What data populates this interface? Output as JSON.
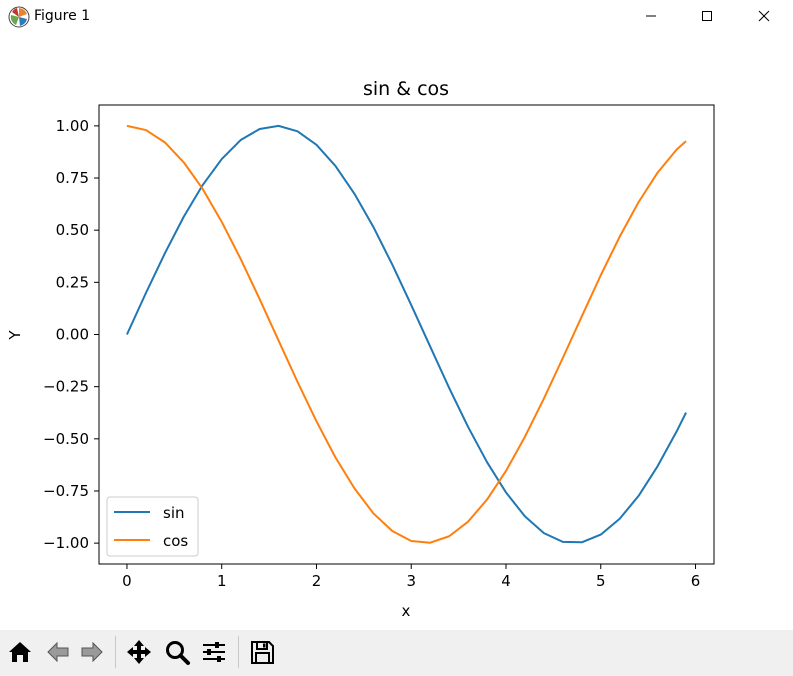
{
  "window": {
    "title": "Figure 1",
    "icons": [
      "matplotlib-logo-icon",
      "minimize-icon",
      "maximize-icon",
      "close-icon"
    ]
  },
  "toolbar": {
    "buttons": [
      {
        "name": "home",
        "icon": "home-icon"
      },
      {
        "name": "back",
        "icon": "back-arrow-icon"
      },
      {
        "name": "forward",
        "icon": "forward-arrow-icon"
      },
      {
        "name": "pan",
        "icon": "move-icon"
      },
      {
        "name": "zoom",
        "icon": "zoom-icon"
      },
      {
        "name": "configure-subplots",
        "icon": "sliders-icon"
      },
      {
        "name": "save",
        "icon": "save-icon"
      }
    ]
  },
  "chart_data": {
    "type": "line",
    "title": "sin & cos",
    "xlabel": "x",
    "ylabel": "Y",
    "xlim": [
      -0.295,
      6.195
    ],
    "ylim": [
      -1.1,
      1.1
    ],
    "xticks": [
      0,
      1,
      2,
      3,
      4,
      5,
      6
    ],
    "xtick_labels": [
      "0",
      "1",
      "2",
      "3",
      "4",
      "5",
      "6"
    ],
    "yticks": [
      1.0,
      0.75,
      0.5,
      0.25,
      0.0,
      -0.25,
      -0.5,
      -0.75,
      -1.0
    ],
    "ytick_labels": [
      "1.00",
      "0.75",
      "0.50",
      "0.25",
      "0.00",
      "−0.25",
      "−0.50",
      "−0.75",
      "−1.00"
    ],
    "grid": false,
    "legend_position": "lower-left",
    "x": [
      0.0,
      0.2,
      0.4,
      0.6,
      0.8,
      1.0,
      1.2,
      1.4,
      1.6,
      1.8,
      2.0,
      2.2,
      2.4,
      2.6,
      2.8,
      3.0,
      3.2,
      3.4,
      3.6,
      3.8,
      4.0,
      4.2,
      4.4,
      4.6,
      4.8,
      5.0,
      5.2,
      5.4,
      5.6,
      5.8,
      5.9
    ],
    "series": [
      {
        "name": "sin",
        "color": "#1f77b4",
        "values": [
          0.0,
          0.199,
          0.389,
          0.565,
          0.717,
          0.841,
          0.932,
          0.985,
          1.0,
          0.974,
          0.909,
          0.808,
          0.675,
          0.516,
          0.335,
          0.141,
          -0.058,
          -0.256,
          -0.443,
          -0.612,
          -0.757,
          -0.872,
          -0.952,
          -0.994,
          -0.996,
          -0.959,
          -0.883,
          -0.773,
          -0.631,
          -0.465,
          -0.374
        ]
      },
      {
        "name": "cos",
        "color": "#ff7f0e",
        "values": [
          1.0,
          0.98,
          0.921,
          0.825,
          0.697,
          0.54,
          0.362,
          0.17,
          -0.029,
          -0.227,
          -0.416,
          -0.589,
          -0.737,
          -0.857,
          -0.942,
          -0.99,
          -0.998,
          -0.967,
          -0.897,
          -0.791,
          -0.654,
          -0.49,
          -0.307,
          -0.112,
          0.087,
          0.284,
          0.469,
          0.635,
          0.776,
          0.886,
          0.927
        ]
      }
    ]
  }
}
